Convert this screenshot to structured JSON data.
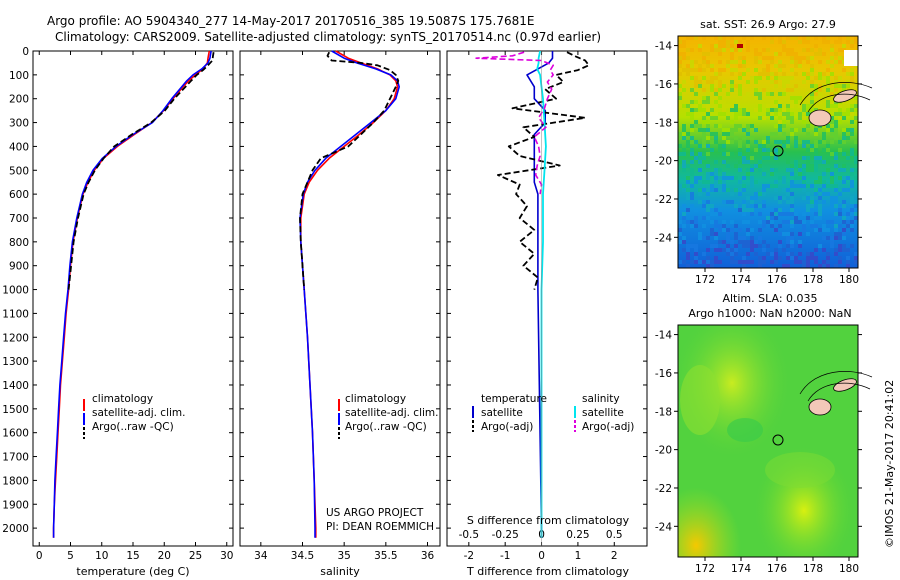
{
  "header": {
    "line1": "Argo profile: AO 5904340_277 14-May-2017 20170516_385 19.5087S 175.7681E",
    "line2": "Climatology: CARS2009. Satellite-adjusted climatology: synTS_20170514.nc (0.97d earlier)"
  },
  "colors": {
    "climatology": "#ff0000",
    "satellite": "#0000ff",
    "argo": "#000000",
    "t_sat": "#0000cc",
    "s_sat": "#00e5ee",
    "s_argo": "#dd00dd"
  },
  "chart_data": [
    {
      "id": "temperature",
      "type": "line",
      "xlabel": "temperature (deg C)",
      "ylabel": "",
      "xlim": [
        -1,
        31
      ],
      "ylim": [
        2075,
        0
      ],
      "xticks": [
        "0",
        "5",
        "10",
        "15",
        "20",
        "25",
        "30"
      ],
      "yticks": [
        "0",
        "100",
        "200",
        "300",
        "400",
        "500",
        "600",
        "700",
        "800",
        "900",
        "1000",
        "1100",
        "1200",
        "1300",
        "1400",
        "1500",
        "1600",
        "1700",
        "1800",
        "1900",
        "2000"
      ],
      "legend": {
        "placement": "bottom-center",
        "entries": [
          "climatology",
          "satellite-adj. clim.",
          "Argo(..raw -QC)"
        ]
      },
      "series": [
        {
          "name": "climatology",
          "depth": [
            0,
            30,
            50,
            75,
            100,
            125,
            150,
            200,
            250,
            300,
            350,
            400,
            450,
            500,
            550,
            600,
            700,
            800,
            900,
            1000,
            1100,
            1200,
            1300,
            1400,
            1500,
            1600,
            1700,
            1800,
            1900,
            2000,
            2040
          ],
          "values": [
            27.2,
            27.0,
            26.9,
            26.2,
            25.0,
            23.9,
            23.0,
            21.4,
            19.9,
            18.0,
            15.2,
            12.5,
            10.3,
            8.8,
            7.8,
            7.0,
            6.1,
            5.4,
            5.0,
            4.7,
            4.3,
            4.0,
            3.7,
            3.4,
            3.2,
            3.0,
            2.8,
            2.6,
            2.4,
            2.3,
            2.3
          ]
        },
        {
          "name": "satellite-adj. clim.",
          "depth": [
            0,
            30,
            50,
            75,
            100,
            125,
            150,
            200,
            250,
            300,
            350,
            400,
            450,
            500,
            550,
            600,
            700,
            800,
            900,
            1000,
            1100,
            1200,
            1300,
            1400,
            1500,
            1600,
            1700,
            1800,
            1900,
            2000,
            2040
          ],
          "values": [
            27.5,
            27.3,
            27.0,
            26.0,
            24.6,
            23.6,
            22.8,
            21.2,
            19.8,
            18.1,
            15.0,
            12.3,
            10.1,
            8.6,
            7.6,
            6.9,
            6.0,
            5.3,
            4.9,
            4.6,
            4.2,
            3.9,
            3.6,
            3.3,
            3.1,
            2.9,
            2.7,
            2.5,
            2.4,
            2.3,
            2.3
          ]
        },
        {
          "name": "Argo(..raw -QC)",
          "depth": [
            5,
            20,
            40,
            60,
            80,
            100,
            125,
            150,
            200,
            250,
            300,
            350,
            400,
            450,
            500,
            550,
            600,
            700,
            800,
            900,
            1000
          ],
          "values": [
            27.9,
            27.8,
            27.7,
            27.0,
            26.2,
            25.2,
            24.3,
            23.4,
            21.6,
            20.1,
            17.9,
            14.8,
            12.0,
            10.3,
            8.9,
            7.9,
            7.1,
            6.2,
            5.5,
            5.1,
            4.7
          ]
        }
      ]
    },
    {
      "id": "salinity",
      "type": "line",
      "xlabel": "salinity",
      "ylabel": "",
      "xlim": [
        33.75,
        36.15
      ],
      "ylim": [
        2075,
        0
      ],
      "xticks": [
        "34",
        "34.5",
        "35",
        "35.5",
        "36"
      ],
      "legend": {
        "placement": "bottom-center",
        "entries": [
          "climatology",
          "satellite-adj. clim.",
          "Argo(..raw -QC)"
        ]
      },
      "annotation": [
        "US ARGO PROJECT",
        "PI: DEAN ROEMMICH"
      ],
      "series": [
        {
          "name": "climatology",
          "depth": [
            0,
            30,
            50,
            75,
            100,
            125,
            150,
            200,
            250,
            300,
            350,
            400,
            450,
            500,
            550,
            600,
            700,
            800,
            900,
            1000,
            1200,
            1400,
            1600,
            1800,
            2000,
            2040
          ],
          "values": [
            34.9,
            35.05,
            35.2,
            35.4,
            35.55,
            35.62,
            35.64,
            35.6,
            35.5,
            35.35,
            35.18,
            35.0,
            34.82,
            34.68,
            34.58,
            34.52,
            34.48,
            34.48,
            34.5,
            34.52,
            34.56,
            34.59,
            34.62,
            34.64,
            34.66,
            34.66
          ]
        },
        {
          "name": "satellite-adj. clim.",
          "depth": [
            0,
            30,
            50,
            75,
            100,
            125,
            150,
            200,
            250,
            300,
            350,
            400,
            450,
            500,
            550,
            600,
            700,
            800,
            900,
            1000,
            1200,
            1400,
            1600,
            1800,
            2000,
            2040
          ],
          "values": [
            34.85,
            35.0,
            35.15,
            35.38,
            35.56,
            35.64,
            35.66,
            35.62,
            35.5,
            35.32,
            35.14,
            34.96,
            34.78,
            34.65,
            34.56,
            34.51,
            34.47,
            34.48,
            34.5,
            34.52,
            34.56,
            34.59,
            34.62,
            34.64,
            34.65,
            34.65
          ]
        },
        {
          "name": "Argo(..raw -QC)",
          "depth": [
            5,
            20,
            40,
            50,
            60,
            80,
            100,
            125,
            150,
            200,
            250,
            300,
            350,
            400,
            450,
            500,
            550,
            600,
            700,
            800,
            900,
            1000
          ],
          "values": [
            34.82,
            34.8,
            34.85,
            35.2,
            35.4,
            35.55,
            35.62,
            35.65,
            35.62,
            35.55,
            35.48,
            35.35,
            35.2,
            35.05,
            34.72,
            34.62,
            34.56,
            34.5,
            34.47,
            34.48,
            34.5,
            34.52
          ]
        }
      ]
    },
    {
      "id": "differences",
      "type": "line",
      "xlabel": "T difference from climatology",
      "xlabel2": "S difference from climatology",
      "xlim": [
        -2.6,
        2.9
      ],
      "ylim": [
        2075,
        0
      ],
      "xticks": [
        "-2",
        "-1",
        "0",
        "1",
        "2"
      ],
      "xticks_top": [
        "-0.5",
        "-0.25",
        "0",
        "0.25",
        "0.5"
      ],
      "legend_temperature": {
        "title": "temperature",
        "entries": [
          "satellite",
          "Argo(-adj)"
        ]
      },
      "legend_salinity": {
        "title": "salinity",
        "entries": [
          "satellite",
          "Argo(-adj)"
        ]
      },
      "series": [
        {
          "name": "T satellite",
          "depth": [
            0,
            30,
            50,
            75,
            100,
            150,
            200,
            250,
            300,
            350,
            400,
            450,
            500,
            550,
            600,
            700,
            800,
            900,
            1000,
            1500,
            2000,
            2040
          ],
          "values": [
            0.3,
            0.3,
            0.2,
            -0.1,
            -0.4,
            -0.2,
            -0.2,
            0.1,
            0.1,
            -0.2,
            -0.2,
            -0.2,
            -0.2,
            -0.2,
            -0.1,
            -0.1,
            -0.1,
            -0.1,
            -0.1,
            -0.05,
            0,
            0
          ]
        },
        {
          "name": "T Argo(-adj)",
          "depth": [
            5,
            20,
            40,
            60,
            80,
            100,
            130,
            160,
            200,
            240,
            280,
            320,
            360,
            400,
            440,
            480,
            520,
            560,
            600,
            650,
            700,
            750,
            800,
            850,
            900,
            950,
            1000
          ],
          "values": [
            0.7,
            0.9,
            1.2,
            1.3,
            1.0,
            0.4,
            0.6,
            0.1,
            0.4,
            -0.8,
            1.2,
            -0.5,
            -0.2,
            -0.9,
            -0.6,
            0.5,
            -1.2,
            -0.6,
            -0.7,
            -0.4,
            -0.6,
            -0.2,
            -0.6,
            -0.2,
            -0.5,
            -0.1,
            -0.2
          ]
        },
        {
          "name": "S satellite",
          "depth": [
            0,
            30,
            50,
            75,
            100,
            150,
            200,
            300,
            400,
            500,
            600,
            800,
            1000,
            1500,
            2000,
            2040
          ],
          "values": [
            -0.01,
            -0.02,
            -0.02,
            -0.03,
            -0.01,
            0.0,
            0.01,
            0.02,
            0.03,
            0.02,
            0.01,
            0.01,
            0.0,
            0.0,
            0.0,
            0.0
          ]
        },
        {
          "name": "S Argo(-adj)",
          "depth": [
            5,
            20,
            30,
            40,
            60,
            80,
            100,
            130,
            160,
            200,
            240,
            280,
            320,
            360,
            400,
            440,
            480,
            520,
            560,
            600
          ],
          "values": [
            -0.12,
            -0.2,
            -0.45,
            0.0,
            0.08,
            0.06,
            0.08,
            0.04,
            0.07,
            0.04,
            0.02,
            -0.02,
            0.03,
            -0.05,
            -0.02,
            -0.01,
            -0.03,
            -0.04,
            0.0,
            -0.01
          ]
        }
      ]
    },
    {
      "id": "sst-map",
      "type": "heatmap",
      "title": "sat. SST: 26.9 Argo: 27.9",
      "xlim": [
        170.5,
        180.5
      ],
      "ylim": [
        -25.6,
        -13.5
      ],
      "xticks": [
        "172",
        "174",
        "176",
        "178",
        "180"
      ],
      "yticks": [
        "-14",
        "-16",
        "-18",
        "-20",
        "-22",
        "-24"
      ],
      "marker": {
        "lon": 175.77,
        "lat": -19.51
      }
    },
    {
      "id": "sla-map",
      "type": "heatmap",
      "title": "Altim. SLA: 0.035",
      "subtitle": "Argo h1000: NaN h2000: NaN",
      "xlim": [
        170.5,
        180.5
      ],
      "ylim": [
        -25.6,
        -13.5
      ],
      "xticks": [
        "172",
        "174",
        "176",
        "178",
        "180"
      ],
      "yticks": [
        "-14",
        "-16",
        "-18",
        "-20",
        "-22",
        "-24"
      ],
      "marker": {
        "lon": 175.77,
        "lat": -19.51
      }
    }
  ],
  "footer": {
    "stamp": "©IMOS 21-May-2017 20:41:02"
  }
}
